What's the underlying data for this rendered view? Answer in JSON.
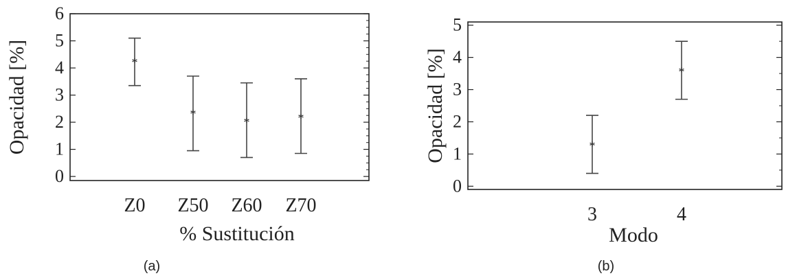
{
  "chart_data": [
    {
      "type": "scatter",
      "panel_label": "(a)",
      "xlabel": "% Sustitución",
      "ylabel": "Opacidad [%]",
      "categories": [
        "Z0",
        "Z50",
        "Z60",
        "Z70"
      ],
      "ylim": [
        -0.15,
        6
      ],
      "yticks": [
        0,
        1,
        2,
        3,
        4,
        5,
        6
      ],
      "series": [
        {
          "values": [
            4.25,
            2.35,
            2.05,
            2.2
          ],
          "lower": [
            3.35,
            0.95,
            0.7,
            0.85
          ],
          "upper": [
            5.1,
            3.7,
            3.45,
            3.6
          ]
        }
      ],
      "grid": false,
      "legend": "none"
    },
    {
      "type": "scatter",
      "panel_label": "(b)",
      "xlabel": "Modo",
      "ylabel": "Opacidad [%]",
      "categories": [
        "3",
        "4"
      ],
      "ylim": [
        -0.1,
        5.1
      ],
      "yticks": [
        0,
        1,
        2,
        3,
        4,
        5
      ],
      "series": [
        {
          "values": [
            1.3,
            3.6
          ],
          "lower": [
            0.4,
            2.7
          ],
          "upper": [
            2.2,
            4.5
          ]
        }
      ],
      "grid": false,
      "legend": "none"
    }
  ],
  "colors": {
    "axis": "#222222",
    "errorbar": "#444444",
    "marker": "#333333"
  }
}
